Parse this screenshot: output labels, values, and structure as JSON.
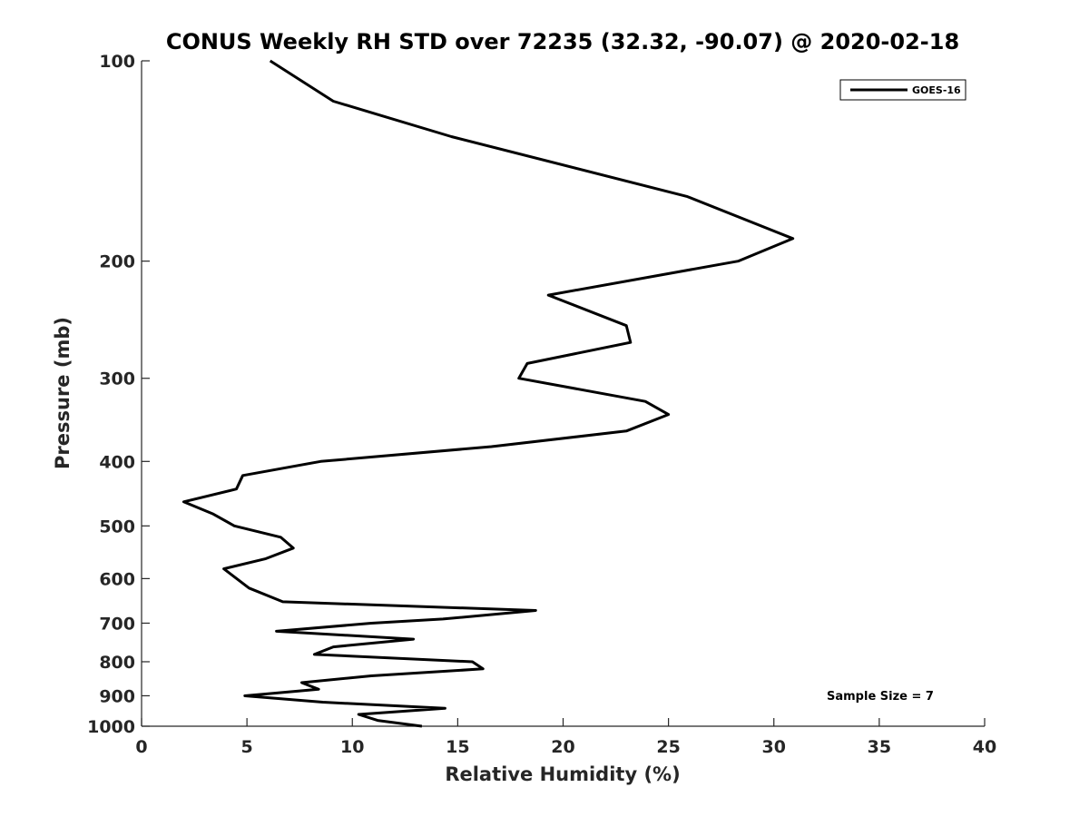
{
  "chart_data": {
    "type": "line",
    "title": "CONUS Weekly RH STD over 72235 (32.32, -90.07) @ 2020-02-18",
    "xlabel": "Relative Humidity (%)",
    "ylabel": "Pressure (mb)",
    "xlim": [
      0,
      40
    ],
    "ylim": [
      1000,
      100
    ],
    "yscale": "log",
    "grid": false,
    "legend_position": "top-right",
    "xticks": [
      0,
      5,
      10,
      15,
      20,
      25,
      30,
      35,
      40
    ],
    "yticks": [
      100,
      200,
      300,
      400,
      500,
      600,
      700,
      800,
      900,
      1000
    ],
    "annotation": "Sample Size = 7",
    "series": [
      {
        "name": "GOES-16",
        "color": "#000000",
        "points": [
          [
            6.1,
            100
          ],
          [
            9.1,
            115
          ],
          [
            14.7,
            130
          ],
          [
            25.9,
            160
          ],
          [
            30.9,
            185
          ],
          [
            28.3,
            200
          ],
          [
            19.3,
            225
          ],
          [
            23.0,
            250
          ],
          [
            23.2,
            265
          ],
          [
            18.3,
            285
          ],
          [
            17.9,
            300
          ],
          [
            23.9,
            325
          ],
          [
            25.0,
            340
          ],
          [
            23.0,
            360
          ],
          [
            16.6,
            380
          ],
          [
            8.5,
            400
          ],
          [
            4.8,
            420
          ],
          [
            4.5,
            440
          ],
          [
            2.0,
            460
          ],
          [
            3.4,
            480
          ],
          [
            4.4,
            500
          ],
          [
            6.6,
            520
          ],
          [
            7.2,
            540
          ],
          [
            5.9,
            560
          ],
          [
            3.9,
            580
          ],
          [
            5.1,
            620
          ],
          [
            6.7,
            650
          ],
          [
            18.7,
            670
          ],
          [
            14.3,
            690
          ],
          [
            10.9,
            700
          ],
          [
            6.4,
            720
          ],
          [
            12.9,
            740
          ],
          [
            9.1,
            760
          ],
          [
            8.2,
            780
          ],
          [
            15.7,
            800
          ],
          [
            16.2,
            820
          ],
          [
            10.9,
            840
          ],
          [
            7.6,
            860
          ],
          [
            8.4,
            880
          ],
          [
            4.9,
            900
          ],
          [
            8.6,
            920
          ],
          [
            14.4,
            940
          ],
          [
            10.3,
            960
          ],
          [
            11.2,
            980
          ],
          [
            13.3,
            1000
          ]
        ]
      }
    ]
  }
}
